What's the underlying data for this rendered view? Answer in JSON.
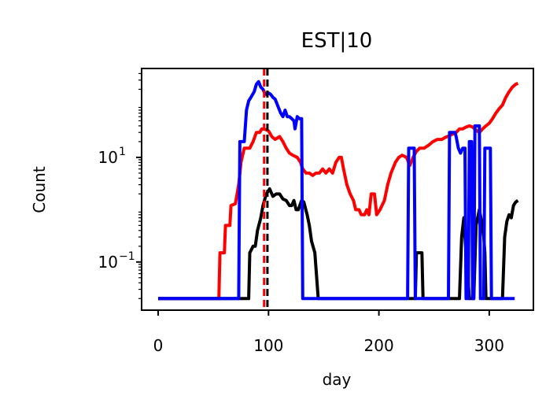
{
  "chart_data": {
    "type": "line",
    "title": "EST|10",
    "xlabel": "day",
    "ylabel": "Count",
    "yscale": "log",
    "xlim": [
      -15,
      340
    ],
    "ylim": [
      0.012,
      500
    ],
    "x_ticks": [
      0,
      100,
      200,
      300
    ],
    "x_tick_labels": [
      "0",
      "100",
      "200",
      "300"
    ],
    "y_ticks": [
      10,
      0.1
    ],
    "y_tick_labels": [
      {
        "base": "10",
        "exp": "1"
      },
      {
        "base": "10",
        "exp": "−1"
      }
    ],
    "grid": false,
    "legend": "none",
    "vlines": [
      {
        "x": 96,
        "color": "#ff0000",
        "style": "dashed"
      },
      {
        "x": 99,
        "color": "#000000",
        "style": "dashed"
      }
    ],
    "series": [
      {
        "color": "#ff0000",
        "points": [
          [
            0,
            0.02
          ],
          [
            55,
            0.02
          ],
          [
            56,
            0.15
          ],
          [
            60,
            0.15
          ],
          [
            61,
            0.5
          ],
          [
            65,
            0.5
          ],
          [
            66,
            1.2
          ],
          [
            70,
            1.3
          ],
          [
            73,
            3
          ],
          [
            75,
            8
          ],
          [
            78,
            15
          ],
          [
            83,
            15
          ],
          [
            86,
            20
          ],
          [
            89,
            30
          ],
          [
            92,
            30
          ],
          [
            94,
            35
          ],
          [
            96,
            35
          ],
          [
            100,
            32
          ],
          [
            103,
            25
          ],
          [
            106,
            22
          ],
          [
            110,
            25
          ],
          [
            113,
            20
          ],
          [
            116,
            15
          ],
          [
            119,
            12
          ],
          [
            122,
            11
          ],
          [
            126,
            10
          ],
          [
            129,
            8
          ],
          [
            131,
            6
          ],
          [
            134,
            5
          ],
          [
            137,
            5
          ],
          [
            140,
            4.5
          ],
          [
            143,
            5
          ],
          [
            146,
            5
          ],
          [
            149,
            6
          ],
          [
            152,
            5
          ],
          [
            155,
            6
          ],
          [
            158,
            5
          ],
          [
            161,
            8
          ],
          [
            164,
            10
          ],
          [
            166,
            10
          ],
          [
            168,
            6
          ],
          [
            171,
            3
          ],
          [
            174,
            2
          ],
          [
            177,
            1.5
          ],
          [
            179,
            1
          ],
          [
            182,
            1
          ],
          [
            184,
            0.8
          ],
          [
            187,
            0.8
          ],
          [
            189,
            1
          ],
          [
            191,
            0.8
          ],
          [
            193,
            2
          ],
          [
            196,
            2
          ],
          [
            198,
            0.8
          ],
          [
            201,
            1
          ],
          [
            205,
            1.5
          ],
          [
            208,
            3
          ],
          [
            211,
            5
          ],
          [
            215,
            8
          ],
          [
            218,
            10
          ],
          [
            221,
            11
          ],
          [
            225,
            10
          ],
          [
            228,
            7
          ],
          [
            231,
            10
          ],
          [
            234,
            13
          ],
          [
            237,
            15
          ],
          [
            241,
            15
          ],
          [
            245,
            17
          ],
          [
            249,
            20
          ],
          [
            253,
            22
          ],
          [
            257,
            22
          ],
          [
            260,
            24
          ],
          [
            264,
            26
          ],
          [
            267,
            28
          ],
          [
            270,
            30
          ],
          [
            273,
            35
          ],
          [
            276,
            35
          ],
          [
            279,
            38
          ],
          [
            282,
            40
          ],
          [
            285,
            38
          ],
          [
            288,
            33
          ],
          [
            291,
            30
          ],
          [
            294,
            35
          ],
          [
            297,
            40
          ],
          [
            300,
            45
          ],
          [
            303,
            55
          ],
          [
            306,
            70
          ],
          [
            309,
            85
          ],
          [
            312,
            100
          ],
          [
            315,
            140
          ],
          [
            318,
            180
          ],
          [
            321,
            220
          ],
          [
            324,
            250
          ],
          [
            326,
            260
          ]
        ]
      },
      {
        "color": "#000000",
        "points": [
          [
            0,
            0.02
          ],
          [
            82,
            0.02
          ],
          [
            83,
            0.15
          ],
          [
            86,
            0.2
          ],
          [
            88,
            0.2
          ],
          [
            90,
            0.4
          ],
          [
            93,
            0.7
          ],
          [
            95,
            1.2
          ],
          [
            98,
            2
          ],
          [
            101,
            2.5
          ],
          [
            104,
            1.8
          ],
          [
            107,
            2
          ],
          [
            110,
            2
          ],
          [
            113,
            1.6
          ],
          [
            116,
            1.5
          ],
          [
            119,
            1.2
          ],
          [
            121,
            1.2
          ],
          [
            123,
            1.5
          ],
          [
            125,
            1
          ],
          [
            127,
            1
          ],
          [
            130,
            1.5
          ],
          [
            132,
            1.4
          ],
          [
            135,
            0.8
          ],
          [
            137,
            0.5
          ],
          [
            139,
            0.25
          ],
          [
            142,
            0.15
          ],
          [
            145,
            0.02
          ],
          [
            233,
            0.02
          ],
          [
            234,
            0.15
          ],
          [
            239,
            0.15
          ],
          [
            240,
            0.02
          ],
          [
            273,
            0.02
          ],
          [
            275,
            0.3
          ],
          [
            277,
            0.7
          ],
          [
            278,
            0.3
          ],
          [
            282,
            0.02
          ],
          [
            286,
            0.02
          ],
          [
            288,
            0.5
          ],
          [
            291,
            1
          ],
          [
            293,
            0.6
          ],
          [
            295,
            0.3
          ],
          [
            296,
            0.15
          ],
          [
            297,
            0.02
          ],
          [
            312,
            0.02
          ],
          [
            314,
            0.3
          ],
          [
            316,
            0.6
          ],
          [
            318,
            0.8
          ],
          [
            320,
            0.7
          ],
          [
            322,
            1.2
          ],
          [
            324,
            1.4
          ],
          [
            326,
            1.5
          ]
        ]
      },
      {
        "color": "#0000ff",
        "points": [
          [
            0,
            0.02
          ],
          [
            73,
            0.02
          ],
          [
            74,
            20
          ],
          [
            78,
            20
          ],
          [
            80,
            80
          ],
          [
            82,
            120
          ],
          [
            84,
            140
          ],
          [
            87,
            180
          ],
          [
            89,
            250
          ],
          [
            91,
            280
          ],
          [
            93,
            220
          ],
          [
            95,
            200
          ],
          [
            97,
            160
          ],
          [
            100,
            170
          ],
          [
            102,
            160
          ],
          [
            104,
            140
          ],
          [
            106,
            130
          ],
          [
            109,
            90
          ],
          [
            111,
            70
          ],
          [
            113,
            60
          ],
          [
            115,
            80
          ],
          [
            117,
            60
          ],
          [
            119,
            60
          ],
          [
            121,
            55
          ],
          [
            123,
            50
          ],
          [
            124,
            35
          ],
          [
            126,
            60
          ],
          [
            128,
            55
          ],
          [
            130,
            55
          ],
          [
            131,
            0.02
          ],
          [
            226,
            0.02
          ],
          [
            227,
            15
          ],
          [
            232,
            15
          ],
          [
            233,
            0.02
          ],
          [
            263,
            0.02
          ],
          [
            264,
            30
          ],
          [
            269,
            30
          ],
          [
            270,
            25
          ],
          [
            272,
            15
          ],
          [
            274,
            12
          ],
          [
            276,
            15
          ],
          [
            278,
            15
          ],
          [
            279,
            0.02
          ],
          [
            281,
            0.02
          ],
          [
            282,
            20
          ],
          [
            284,
            20
          ],
          [
            285,
            0.02
          ],
          [
            286,
            0.02
          ],
          [
            287,
            40
          ],
          [
            291,
            40
          ],
          [
            292,
            0.02
          ],
          [
            295,
            0.02
          ],
          [
            296,
            15
          ],
          [
            301,
            15
          ],
          [
            302,
            0.02
          ],
          [
            323,
            0.02
          ]
        ]
      }
    ]
  }
}
